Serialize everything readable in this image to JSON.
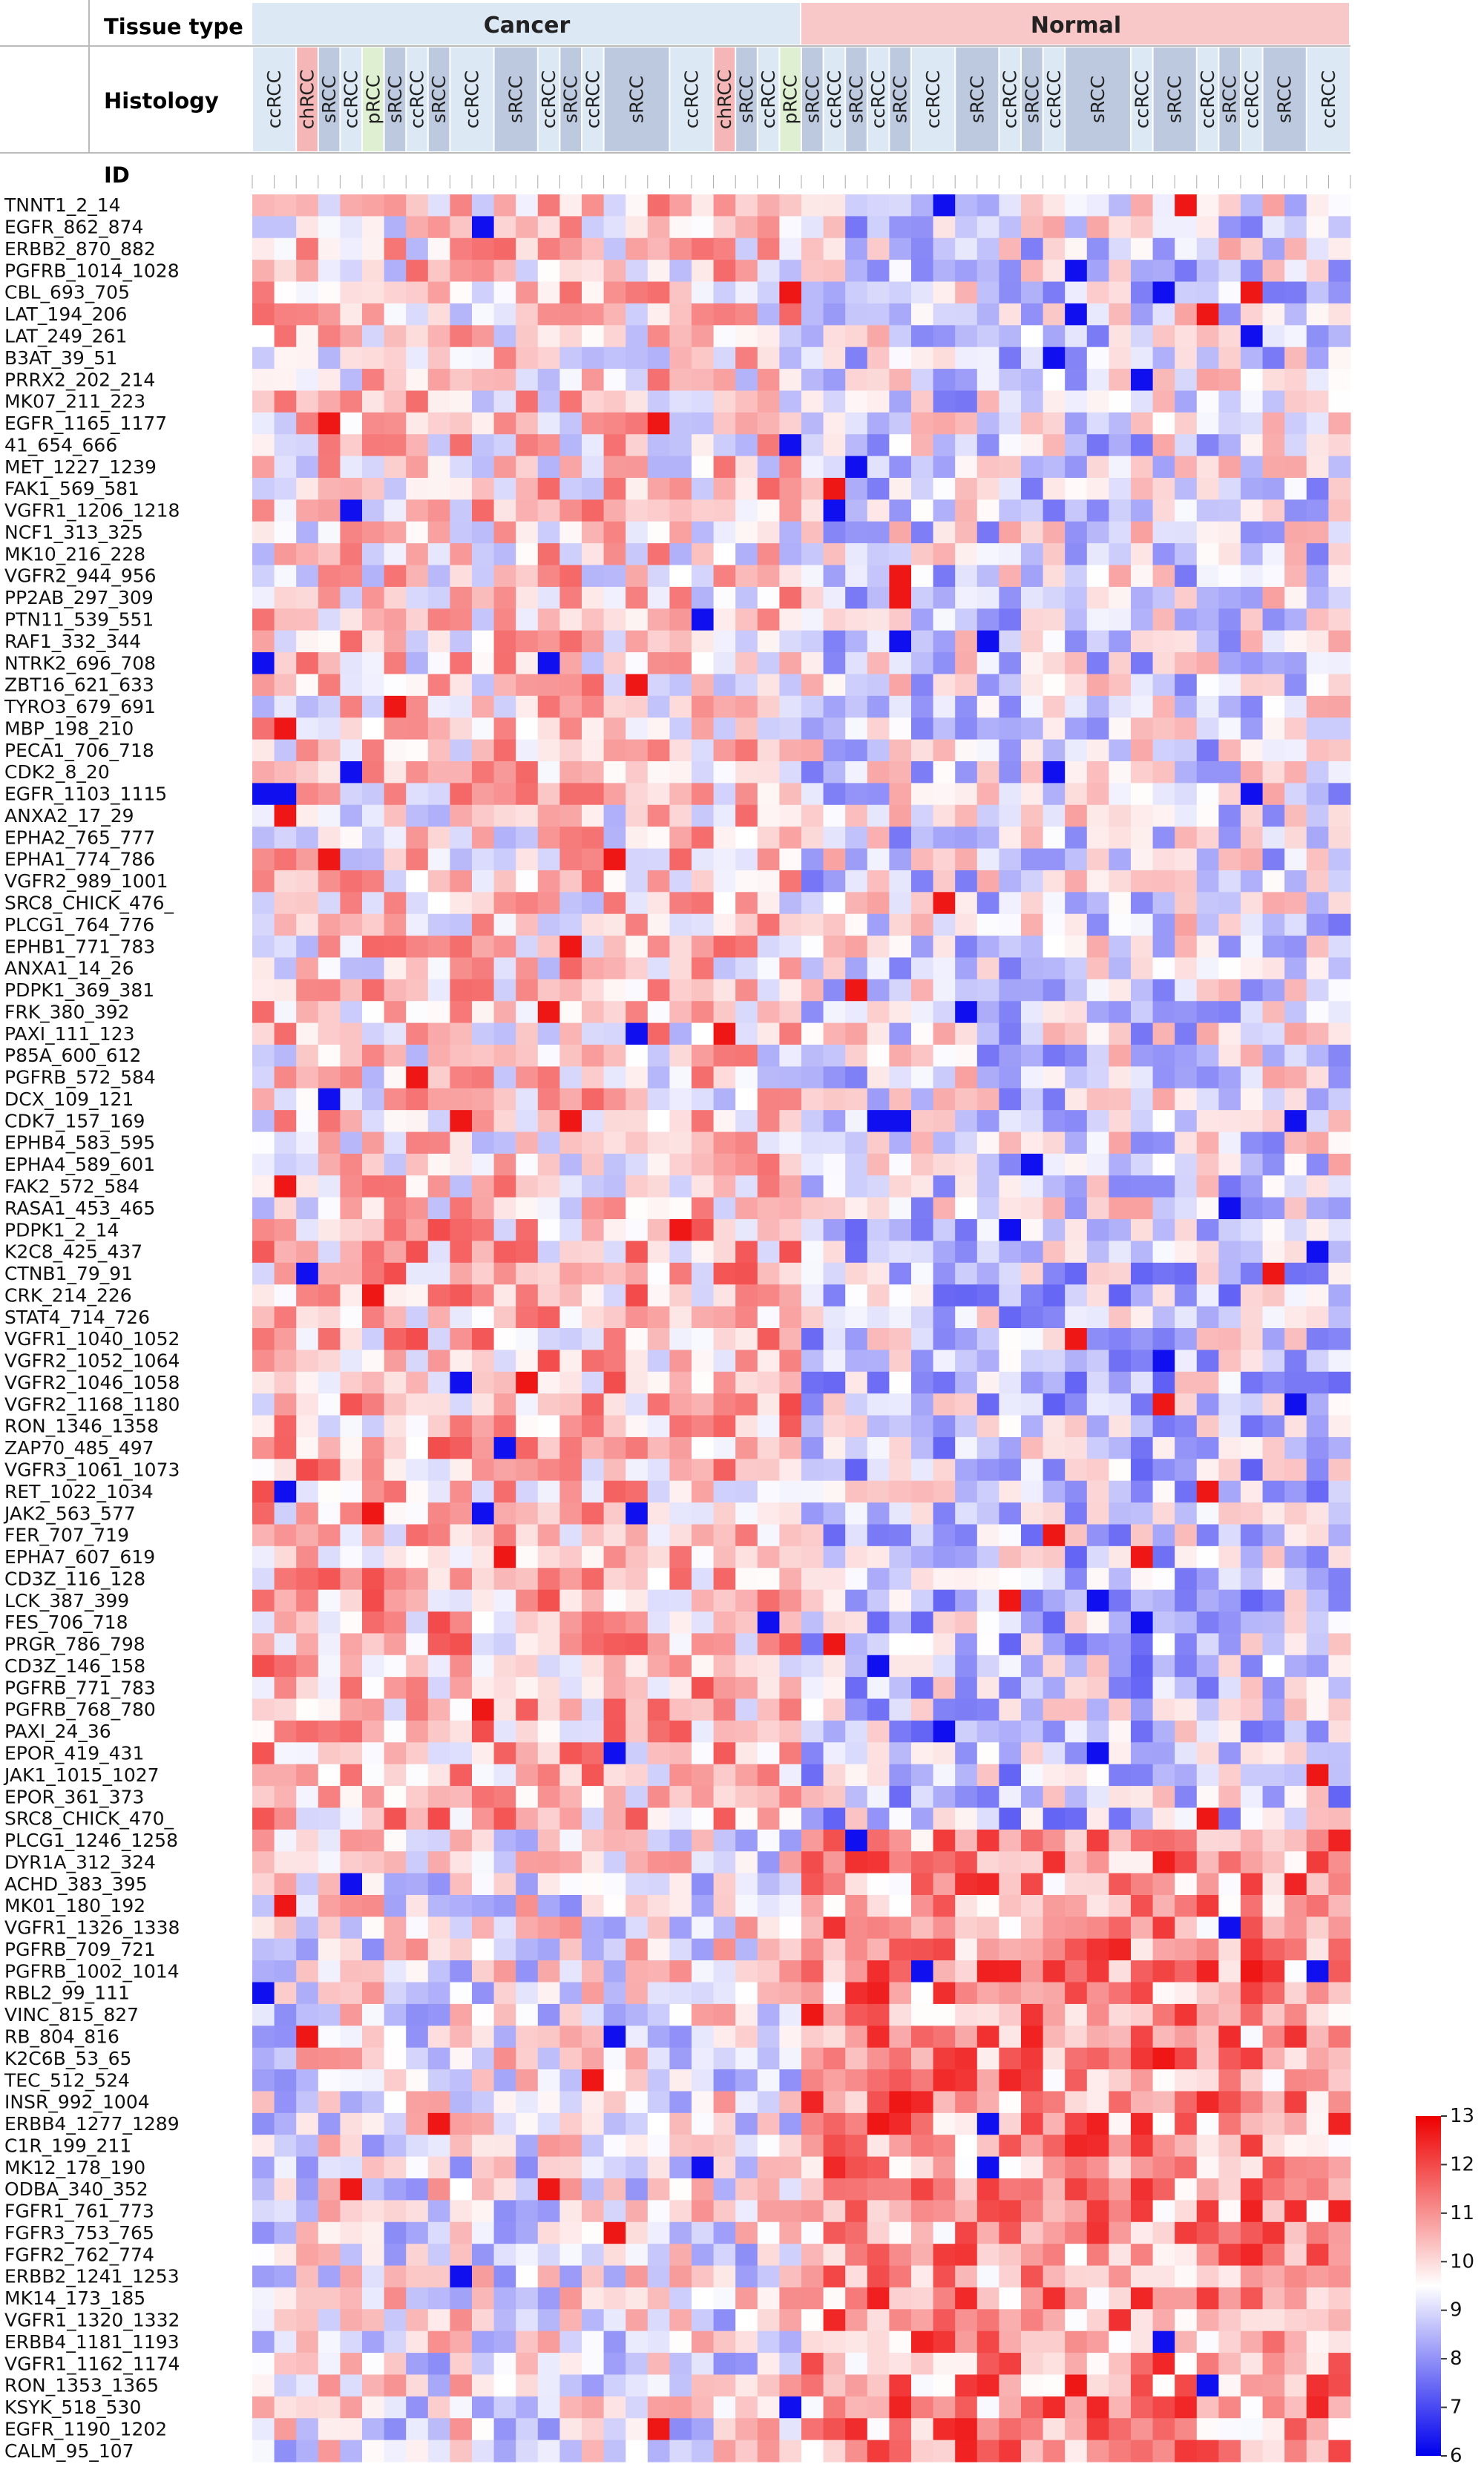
{
  "chart_data": {
    "type": "heatmap",
    "header_labels": {
      "tissue_type": "Tissue type",
      "histology": "Histology",
      "id": "ID"
    },
    "tissue_groups": [
      {
        "name": "Cancer",
        "n_columns": 25,
        "color": "#dce9f5"
      },
      {
        "name": "Normal",
        "n_columns": 25,
        "color": "#f8c7c7"
      }
    ],
    "histology_labels": [
      {
        "text": "ccRCC",
        "start": 0,
        "span": 2
      },
      {
        "text": "chRCC",
        "start": 2,
        "span": 1
      },
      {
        "text": "sRCC",
        "start": 3,
        "span": 1
      },
      {
        "text": "ccRCC",
        "start": 4,
        "span": 1
      },
      {
        "text": "pRCC",
        "start": 5,
        "span": 1
      },
      {
        "text": "sRCC",
        "start": 6,
        "span": 1
      },
      {
        "text": "ccRCC",
        "start": 7,
        "span": 1
      },
      {
        "text": "sRCC",
        "start": 8,
        "span": 1
      },
      {
        "text": "ccRCC",
        "start": 9,
        "span": 2
      },
      {
        "text": "sRCC",
        "start": 11,
        "span": 2
      },
      {
        "text": "ccRCC",
        "start": 13,
        "span": 1
      },
      {
        "text": "sRCC",
        "start": 14,
        "span": 1
      },
      {
        "text": "ccRCC",
        "start": 15,
        "span": 1
      },
      {
        "text": "sRCC",
        "start": 16,
        "span": 3
      },
      {
        "text": "ccRCC",
        "start": 19,
        "span": 2
      },
      {
        "text": "chRCC",
        "start": 21,
        "span": 1
      },
      {
        "text": "sRCC",
        "start": 22,
        "span": 1
      },
      {
        "text": "ccRCC",
        "start": 23,
        "span": 1
      },
      {
        "text": "pRCC",
        "start": 24,
        "span": 1
      },
      {
        "text": "sRCC",
        "start": 25,
        "span": 1
      },
      {
        "text": "ccRCC",
        "start": 26,
        "span": 1
      },
      {
        "text": "sRCC",
        "start": 27,
        "span": 1
      },
      {
        "text": "ccRCC",
        "start": 28,
        "span": 1
      },
      {
        "text": "sRCC",
        "start": 29,
        "span": 1
      },
      {
        "text": "ccRCC",
        "start": 30,
        "span": 2
      },
      {
        "text": "sRCC",
        "start": 32,
        "span": 2
      },
      {
        "text": "ccRCC",
        "start": 34,
        "span": 1
      },
      {
        "text": "sRCC",
        "start": 35,
        "span": 1
      },
      {
        "text": "ccRCC",
        "start": 36,
        "span": 1
      },
      {
        "text": "sRCC",
        "start": 37,
        "span": 3
      },
      {
        "text": "ccRCC",
        "start": 40,
        "span": 1
      },
      {
        "text": "sRCC",
        "start": 41,
        "span": 2
      },
      {
        "text": "ccRCC",
        "start": 43,
        "span": 1
      },
      {
        "text": "sRCC",
        "start": 44,
        "span": 1
      },
      {
        "text": "ccRCC",
        "start": 45,
        "span": 1
      },
      {
        "text": "sRCC",
        "start": 46,
        "span": 2
      },
      {
        "text": "ccRCC",
        "start": 48,
        "span": 2
      }
    ],
    "histology_colors": {
      "ccRCC": "#dce9f5",
      "chRCC": "#f4b6b6",
      "sRCC": "#bcc9df",
      "pRCC": "#dff0d2"
    },
    "row_labels": [
      "TNNT1_2_14",
      "EGFR_862_874",
      "ERBB2_870_882",
      "PGFRB_1014_1028",
      "CBL_693_705",
      "LAT_194_206",
      "LAT_249_261",
      "B3AT_39_51",
      "PRRX2_202_214",
      "MK07_211_223",
      "EGFR_1165_1177",
      "41_654_666",
      "MET_1227_1239",
      "FAK1_569_581",
      "VGFR1_1206_1218",
      "NCF1_313_325",
      "MK10_216_228",
      "VGFR2_944_956",
      "PP2AB_297_309",
      "PTN11_539_551",
      "RAF1_332_344",
      "NTRK2_696_708",
      "ZBT16_621_633",
      "TYRO3_679_691",
      "MBP_198_210",
      "PECA1_706_718",
      "CDK2_8_20",
      "EGFR_1103_1115",
      "ANXA2_17_29",
      "EPHA2_765_777",
      "EPHA1_774_786",
      "VGFR2_989_1001",
      "SRC8_CHICK_476_",
      "PLCG1_764_776",
      "EPHB1_771_783",
      "ANXA1_14_26",
      "PDPK1_369_381",
      "FRK_380_392",
      "PAXI_111_123",
      "P85A_600_612",
      "PGFRB_572_584",
      "DCX_109_121",
      "CDK7_157_169",
      "EPHB4_583_595",
      "EPHA4_589_601",
      "FAK2_572_584",
      "RASA1_453_465",
      "PDPK1_2_14",
      "K2C8_425_437",
      "CTNB1_79_91",
      "CRK_214_226",
      "STAT4_714_726",
      "VGFR1_1040_1052",
      "VGFR2_1052_1064",
      "VGFR2_1046_1058",
      "VGFR2_1168_1180",
      "RON_1346_1358",
      "ZAP70_485_497",
      "VGFR3_1061_1073",
      "RET_1022_1034",
      "JAK2_563_577",
      "FER_707_719",
      "EPHA7_607_619",
      "CD3Z_116_128",
      "LCK_387_399",
      "FES_706_718",
      "PRGR_786_798",
      "CD3Z_146_158",
      "PGFRB_771_783",
      "PGFRB_768_780",
      "PAXI_24_36",
      "EPOR_419_431",
      "JAK1_1015_1027",
      "EPOR_361_373",
      "SRC8_CHICK_470_",
      "PLCG1_1246_1258",
      "DYR1A_312_324",
      "ACHD_383_395",
      "MK01_180_192",
      "VGFR1_1326_1338",
      "PGFRB_709_721",
      "PGFRB_1002_1014",
      "RBL2_99_111",
      "VINC_815_827",
      "RB_804_816",
      "K2C6B_53_65",
      "TEC_512_524",
      "INSR_992_1004",
      "ERBB4_1277_1289",
      "C1R_199_211",
      "MK12_178_190",
      "ODBA_340_352",
      "FGFR1_761_773",
      "FGFR3_753_765",
      "FGFR2_762_774",
      "ERBB2_1241_1253",
      "MK14_173_185",
      "VGFR1_1320_1332",
      "ERBB4_1181_1193",
      "VGFR1_1162_1174",
      "RON_1353_1365",
      "KSYK_518_530",
      "EGFR_1190_1202",
      "CALM_95_107"
    ],
    "n_columns": 50,
    "colorscale": {
      "min": 6,
      "max": 13,
      "mid": 9.5,
      "low_color": "#0000ee",
      "mid_color": "#ffffff",
      "high_color": "#ee0000",
      "ticks": [
        6,
        7,
        8,
        9,
        10,
        11,
        12,
        13
      ]
    },
    "values_note_hidden": ""
  }
}
